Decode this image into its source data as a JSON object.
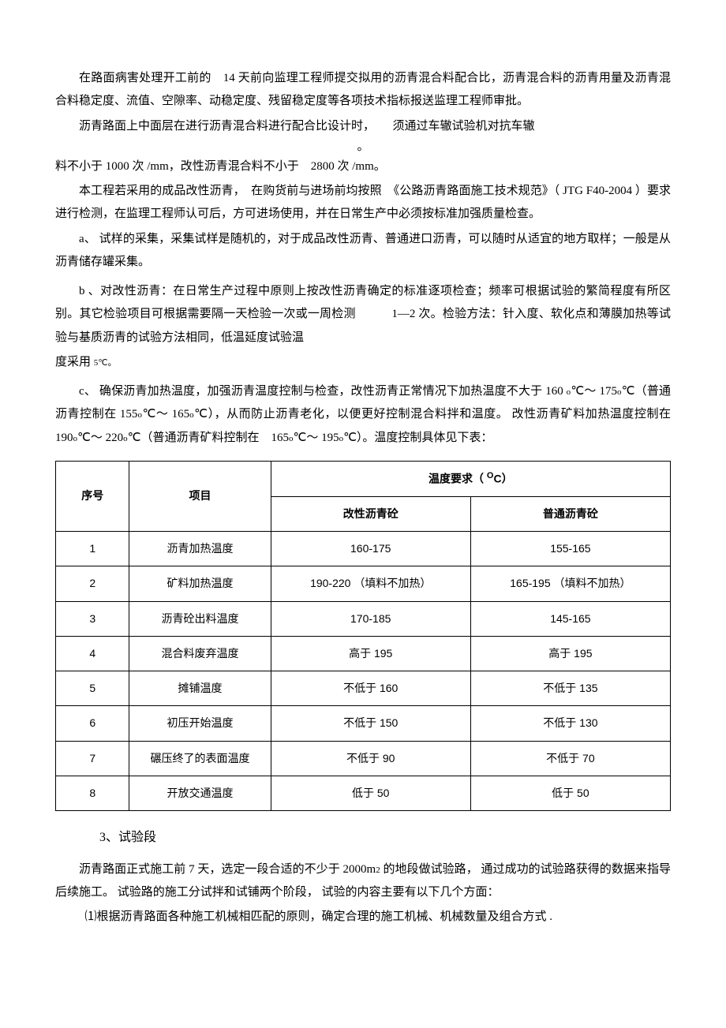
{
  "colors": {
    "text": "#000000",
    "bg": "#ffffff",
    "border": "#000000"
  },
  "fontsize_body": 15,
  "fontsize_table": 14,
  "paragraphs": {
    "p1": "在路面病害处理开工前的　14 天前向监理工程师提交拟用的沥青混合料配合比，沥青混合料的沥青用量及沥青混合料稳定度、流值、空隙率、动稳定度、残留稳定度等各项技术指标报送监理工程师审批。",
    "p2a": "沥青路面上中面层在进行沥青混合料进行配合比设计时，　　须通过车辙试验机对抗车辙",
    "p2mid": "。",
    "p2b": "料不小于  1000 次 /mm，改性沥青混合料不小于　2800 次 /mm。",
    "p3": "本工程若采用的成品改性沥青，　在购货前与进场前均按照　《公路沥青路面施工技术规范》（ JTG F40-2004 ）要求进行检测，在监理工程师认可后，方可进场使用，并在日常生产中必须按标准加强质量检查。",
    "p4": "a、 试样的采集，采集试样是随机的，对于成品改性沥青、普通进口沥青，可以随时从适宜的地方取样；一般是从沥青储存罐采集。",
    "p5a": "b 、对改性沥青：在日常生产过程中原则上按改性沥青确定的标准逐项检查；频率可根据试验的繁简程度有所区别。其它检验项目可根据需要隔一天检验一次或一周检测　　　1—2 次。检验方法：针入度、软化点和薄膜加热等试验与基质沥青的试验方法相同，低温延度试验温",
    "p5b_prefix": "度采用",
    "p5b_val": "5",
    "p5b_unit": "℃。",
    "p6_a": "c、 确保沥青加热温度，加强沥青温度控制与检查，改性沥青正常情况下加热温度不大于 160 ",
    "p6_b": "℃～ 175",
    "p6_c": "℃（普通沥青控制在  155",
    "p6_d": "℃～ 165",
    "p6_e": "℃），从而防止沥青老化，以便更好控制混合料拌和温度。 改性沥青矿料加热温度控制在　 190",
    "p6_f": "℃～ 220",
    "p6_g": "℃（普通沥青矿料控制在　165",
    "p6_h": "℃～ 195",
    "p6_i": "℃）。温度控制具体见下表：",
    "sec3": "3、试验段",
    "p7a": "沥青路面正式施工前 7 天，选定一段合适的不少于 2000m",
    "p7b": " 的地段做试验路， 通过成功的试验路获得的数据来指导后续施工。 试验路的施工分试拌和试铺两个阶段， 试验的内容主要有以下几个方面：",
    "p8": "⑴根据沥青路面各种施工机械相匹配的原则，确定合理的施工机械、机械数量及组合方式 ."
  },
  "table": {
    "header": {
      "seq": "序号",
      "item": "项目",
      "req_label": "温度要求（ ",
      "unit_sup": "O",
      "unit_c": "C）",
      "col_a": "改性沥青砼",
      "col_b": "普通沥青砼"
    },
    "rows": [
      {
        "n": "1",
        "item": "沥青加热温度",
        "a": "160-175",
        "b": "155-165"
      },
      {
        "n": "2",
        "item": "矿料加热温度",
        "a": "190-220 （填料不加热）",
        "b": "165-195 （填料不加热）"
      },
      {
        "n": "3",
        "item": "沥青砼出料温度",
        "a": "170-185",
        "b": "145-165"
      },
      {
        "n": "4",
        "item": "混合料废弃温度",
        "a": "高于 195",
        "b": "高于 195"
      },
      {
        "n": "5",
        "item": "摊铺温度",
        "a": "不低于 160",
        "b": "不低于 135"
      },
      {
        "n": "6",
        "item": "初压开始温度",
        "a": "不低于 150",
        "b": "不低于 130"
      },
      {
        "n": "7",
        "item": "碾压终了的表面温度",
        "a": "不低于 90",
        "b": "不低于 70"
      },
      {
        "n": "8",
        "item": "开放交通温度",
        "a": "低于 50",
        "b": "低于 50"
      }
    ],
    "col_widths": {
      "seq": "12%",
      "item": "23%",
      "val": "32.5%"
    }
  }
}
